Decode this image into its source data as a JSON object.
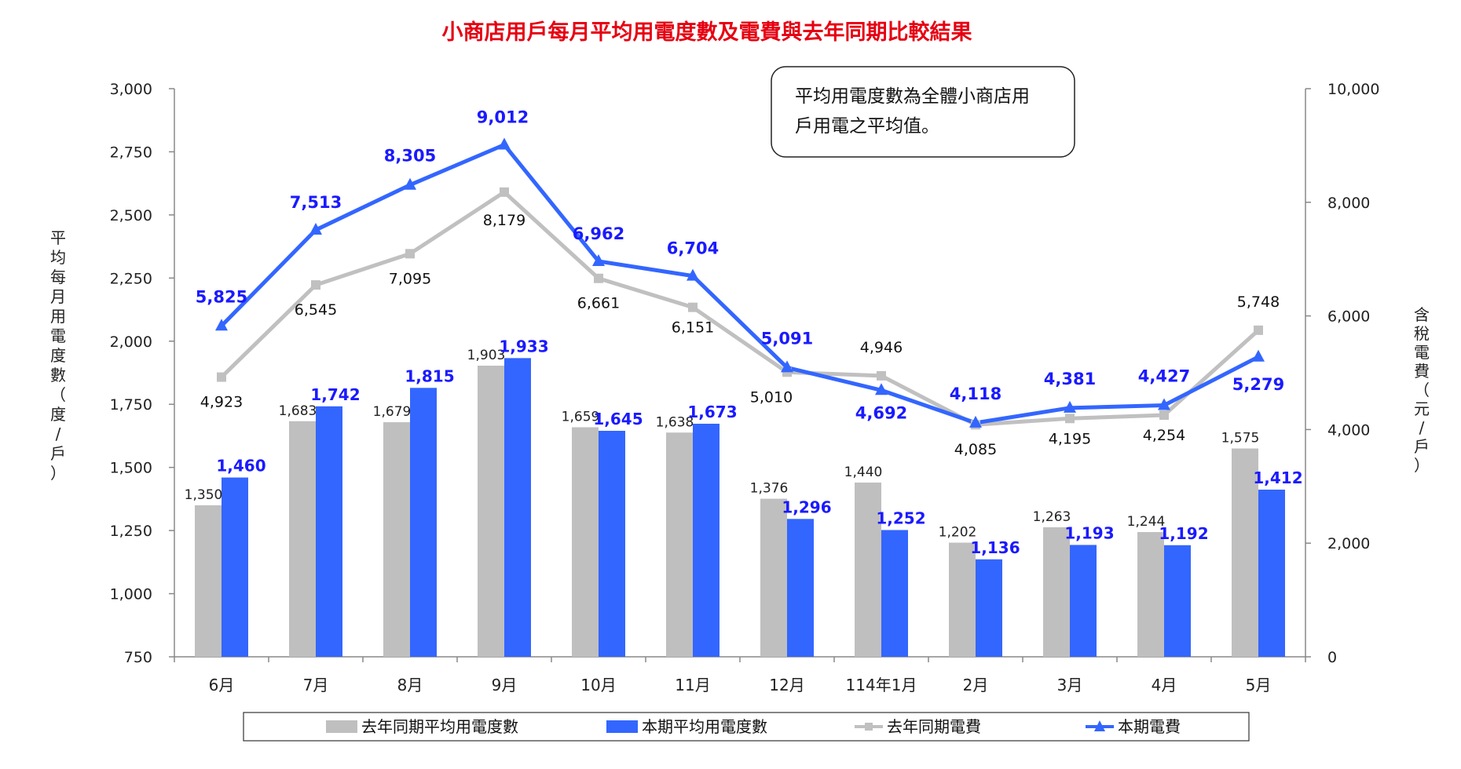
{
  "chart_data": {
    "type": "bar",
    "title": "小商店用戶每月平均用電度數及電費與去年同期比較結果",
    "categories": [
      "6月",
      "7月",
      "8月",
      "9月",
      "10月",
      "11月",
      "12月",
      "114年1月",
      "2月",
      "3月",
      "4月",
      "5月"
    ],
    "ylabel_left": "平均每月用電度數（度/戶）",
    "ylabel_right": "含稅電費（元/戶）",
    "ylim_left": [
      750,
      3000
    ],
    "ylim_right": [
      0,
      10000
    ],
    "yticks_left": [
      "750",
      "1,000",
      "1,250",
      "1,500",
      "1,750",
      "2,000",
      "2,250",
      "2,500",
      "2,750",
      "3,000"
    ],
    "yticks_right": [
      "0",
      "2,000",
      "4,000",
      "6,000",
      "8,000",
      "10,000"
    ],
    "series": [
      {
        "name": "去年同期平均用電度數",
        "kind": "bar",
        "axis": "left",
        "color": "#bfbfbf",
        "values": [
          1350,
          1683,
          1679,
          1903,
          1659,
          1638,
          1376,
          1440,
          1202,
          1263,
          1244,
          1575
        ],
        "labels": [
          "1,350",
          "1,683",
          "1,679",
          "1,903",
          "1,659",
          "1,638",
          "1,376",
          "1,440",
          "1,202",
          "1,263",
          "1,244",
          "1,575"
        ]
      },
      {
        "name": "本期平均用電度數",
        "kind": "bar",
        "axis": "left",
        "color": "#3366ff",
        "values": [
          1460,
          1742,
          1815,
          1933,
          1645,
          1673,
          1296,
          1252,
          1136,
          1193,
          1192,
          1412
        ],
        "labels": [
          "1,460",
          "1,742",
          "1,815",
          "1,933",
          "1,645",
          "1,673",
          "1,296",
          "1,252",
          "1,136",
          "1,193",
          "1,192",
          "1,412"
        ]
      },
      {
        "name": "去年同期電費",
        "kind": "line",
        "axis": "right",
        "color": "#c0c0c0",
        "marker": "square",
        "values": [
          4923,
          6545,
          7095,
          8179,
          6661,
          6151,
          5010,
          4946,
          4085,
          4195,
          4254,
          5748
        ],
        "labels": [
          "4,923",
          "6,545",
          "7,095",
          "8,179",
          "6,661",
          "6,151",
          "5,010",
          "4,946",
          "4,085",
          "4,195",
          "4,254",
          "5,748"
        ]
      },
      {
        "name": "本期電費",
        "kind": "line",
        "axis": "right",
        "color": "#3366ff",
        "marker": "triangle",
        "values": [
          5825,
          7513,
          8305,
          9012,
          6962,
          6704,
          5091,
          4692,
          4118,
          4381,
          4427,
          5279
        ],
        "labels": [
          "5,825",
          "7,513",
          "8,305",
          "9,012",
          "6,962",
          "6,704",
          "5,091",
          "4,692",
          "4,118",
          "4,381",
          "4,427",
          "5,279"
        ]
      }
    ],
    "legend": [
      "去年同期平均用電度數",
      "本期平均用電度數",
      "去年同期電費",
      "本期電費"
    ],
    "legend_position": "bottom",
    "note": [
      "平均用電度數為全體小商店用",
      "戶用電之平均值。"
    ],
    "grid": false
  }
}
